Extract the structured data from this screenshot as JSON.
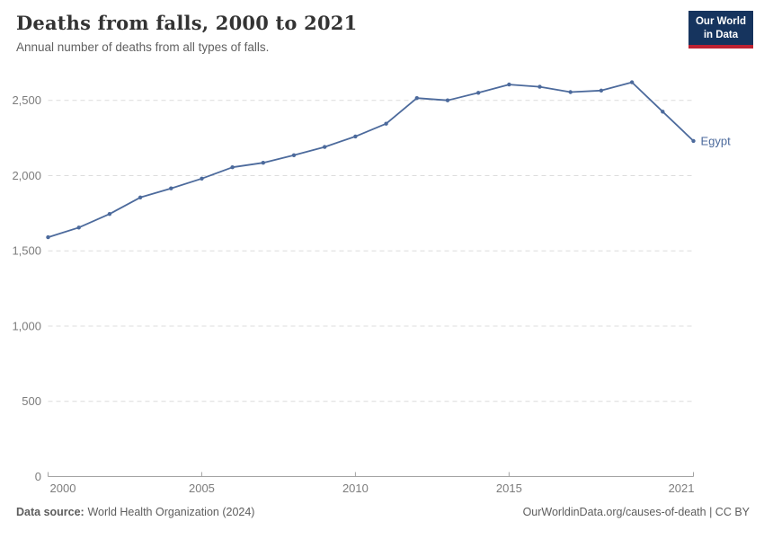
{
  "header": {
    "title": "Deaths from falls, 2000 to 2021",
    "subtitle": "Annual number of deaths from all types of falls.",
    "logo": {
      "line1": "Our World",
      "line2": "in Data",
      "bg_color": "#16345e",
      "accent_color": "#be2232"
    }
  },
  "chart_data": {
    "type": "line",
    "title": "Deaths from falls, 2000 to 2021",
    "subtitle": "Annual number of deaths from all types of falls.",
    "x": [
      2000,
      2001,
      2002,
      2003,
      2004,
      2005,
      2006,
      2007,
      2008,
      2009,
      2010,
      2011,
      2012,
      2013,
      2014,
      2015,
      2016,
      2017,
      2018,
      2019,
      2020,
      2021
    ],
    "series": [
      {
        "name": "Egypt",
        "color": "#4c6a9c",
        "values": [
          1590,
          1655,
          1745,
          1855,
          1915,
          1980,
          2055,
          2085,
          2135,
          2190,
          2260,
          2345,
          2515,
          2500,
          2550,
          2605,
          2590,
          2555,
          2565,
          2620,
          2425,
          2230
        ]
      }
    ],
    "end_label": "Egypt",
    "x_tick_years": [
      2000,
      2005,
      2010,
      2015,
      2021
    ],
    "x_tick_labels": [
      "2000",
      "2005",
      "2010",
      "2015",
      "2021"
    ],
    "y_ticks": [
      0,
      500,
      1000,
      1500,
      2000,
      2500
    ],
    "y_tick_labels": [
      "0",
      "500",
      "1,000",
      "1,500",
      "2,000",
      "2,500"
    ],
    "xlim": [
      2000,
      2021
    ],
    "ylim": [
      0,
      2660
    ],
    "grid": "horizontal-dashed",
    "legend": "end-of-line-label"
  },
  "footer": {
    "source_label": "Data source:",
    "source_value": "World Health Organization (2024)",
    "attribution": "OurWorldinData.org/causes-of-death | CC BY"
  },
  "colors": {
    "line": "#4c6a9c",
    "grid": "#dcdcdc",
    "axis": "#a3a3a3",
    "tick_label": "#7c7c7c"
  }
}
